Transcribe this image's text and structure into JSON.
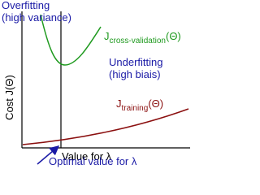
{
  "diagram": {
    "overfitting": {
      "title": "Overfitting",
      "note": "(high variance)"
    },
    "y_axis_label": "Cost J(Θ)",
    "cross_validation_curve": {
      "symbol": "J",
      "subscript": "cross-validation",
      "argument": "(Θ)"
    },
    "underfitting": {
      "title": "Underfitting",
      "note": "(high biais)"
    },
    "training_curve": {
      "symbol": "J",
      "subscript": "training",
      "argument": "(Θ)"
    },
    "x_axis_label": "Value for λ",
    "optimal_label": "Optimal value for λ"
  }
}
